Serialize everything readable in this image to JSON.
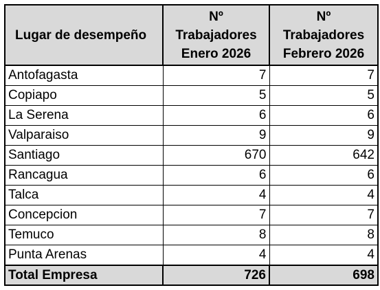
{
  "header": {
    "col1": "Lugar de desempeño",
    "col2": [
      "Nº",
      "Trabajadores",
      "Enero 2026"
    ],
    "col3": [
      "Nº",
      "Trabajadores",
      "Febrero 2026"
    ]
  },
  "rows": [
    {
      "lugar": "Antofagasta",
      "enero": "7",
      "febrero": "7"
    },
    {
      "lugar": "Copiapo",
      "enero": "5",
      "febrero": "5"
    },
    {
      "lugar": "La Serena",
      "enero": "6",
      "febrero": "6"
    },
    {
      "lugar": "Valparaiso",
      "enero": "9",
      "febrero": "9"
    },
    {
      "lugar": "Santiago",
      "enero": "670",
      "febrero": "642"
    },
    {
      "lugar": "Rancagua",
      "enero": "6",
      "febrero": "6"
    },
    {
      "lugar": "Talca",
      "enero": "4",
      "febrero": "4"
    },
    {
      "lugar": "Concepcion",
      "enero": "7",
      "febrero": "7"
    },
    {
      "lugar": "Temuco",
      "enero": "8",
      "febrero": "8"
    },
    {
      "lugar": "Punta Arenas",
      "enero": "4",
      "febrero": "4"
    }
  ],
  "total": {
    "label": "Total Empresa",
    "enero": "726",
    "febrero": "698"
  }
}
